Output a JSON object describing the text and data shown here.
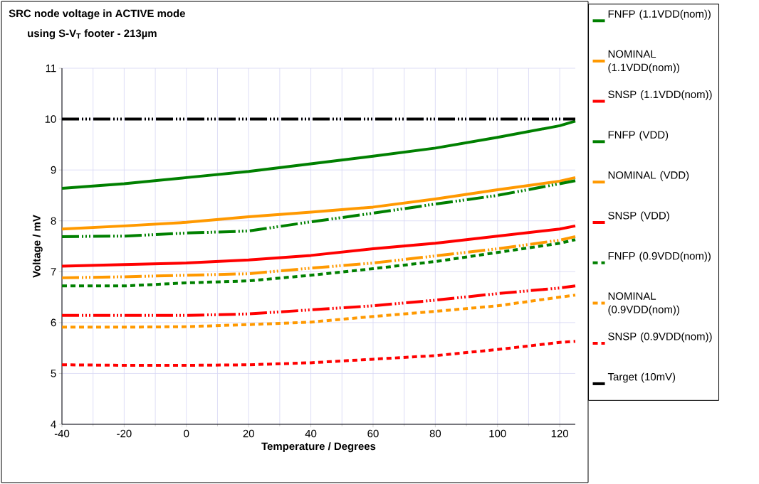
{
  "chart_data": {
    "type": "line",
    "title": "SRC node voltage in ACTIVE mode",
    "subtitle": "using S-V$_{T}$ footer - 213µm",
    "xlabel": "Temperature / Degrees",
    "ylabel": "Voltage / mV",
    "x": [
      -40,
      -20,
      0,
      20,
      40,
      60,
      80,
      100,
      120,
      125
    ],
    "xlim": [
      -40,
      125
    ],
    "xticks": [
      -40,
      -20,
      0,
      20,
      40,
      60,
      80,
      100,
      120
    ],
    "ylim": [
      4,
      11
    ],
    "yticks": [
      4,
      5,
      6,
      7,
      8,
      9,
      10,
      11
    ],
    "grid": true,
    "legend": "right",
    "marker": "none",
    "series": [
      {
        "name": "FNFP (1.1VDD(nom))",
        "color": "#008000",
        "line_style": "solid",
        "values": [
          8.64,
          8.73,
          8.85,
          8.97,
          9.12,
          9.27,
          9.43,
          9.64,
          9.87,
          9.96
        ]
      },
      {
        "name": "NOMINAL (1.1VDD(nom))",
        "color": "#ff9900",
        "line_style": "solid",
        "values": [
          7.84,
          7.9,
          7.97,
          8.08,
          8.17,
          8.27,
          8.43,
          8.61,
          8.78,
          8.85
        ]
      },
      {
        "name": "SNSP (1.1VDD(nom))",
        "color": "#ff0000",
        "line_style": "solid",
        "values": [
          7.11,
          7.14,
          7.17,
          7.23,
          7.32,
          7.45,
          7.56,
          7.7,
          7.84,
          7.9
        ]
      },
      {
        "name": "FNFP (VDD)",
        "color": "#008000",
        "line_style": "dashdot",
        "values": [
          7.69,
          7.7,
          7.76,
          7.8,
          7.98,
          8.15,
          8.33,
          8.5,
          8.73,
          8.79
        ]
      },
      {
        "name": "NOMINAL (VDD)",
        "color": "#ff9900",
        "line_style": "dashdot",
        "values": [
          6.88,
          6.9,
          6.93,
          6.96,
          7.07,
          7.17,
          7.31,
          7.45,
          7.62,
          7.69
        ]
      },
      {
        "name": "SNSP (VDD)",
        "color": "#ff0000",
        "line_style": "dashdot",
        "values": [
          6.14,
          6.14,
          6.14,
          6.17,
          6.25,
          6.33,
          6.44,
          6.57,
          6.68,
          6.72
        ]
      },
      {
        "name": "FNFP (0.9VDD(nom))",
        "color": "#008000",
        "line_style": "dashed",
        "values": [
          6.72,
          6.72,
          6.78,
          6.82,
          6.93,
          7.06,
          7.2,
          7.38,
          7.56,
          7.63
        ]
      },
      {
        "name": "NOMINAL (0.9VDD(nom))",
        "color": "#ff9900",
        "line_style": "dashed",
        "values": [
          5.91,
          5.91,
          5.92,
          5.96,
          6.01,
          6.12,
          6.22,
          6.33,
          6.5,
          6.54
        ]
      },
      {
        "name": "SNSP (0.9VDD(nom))",
        "color": "#ff0000",
        "line_style": "dashed",
        "values": [
          5.17,
          5.16,
          5.16,
          5.17,
          5.21,
          5.28,
          5.35,
          5.47,
          5.61,
          5.63
        ]
      },
      {
        "name": "Target (10mV)",
        "color": "#000000",
        "line_style": "dashdot",
        "values": [
          10,
          10,
          10,
          10,
          10,
          10,
          10,
          10,
          10,
          10
        ]
      }
    ]
  }
}
